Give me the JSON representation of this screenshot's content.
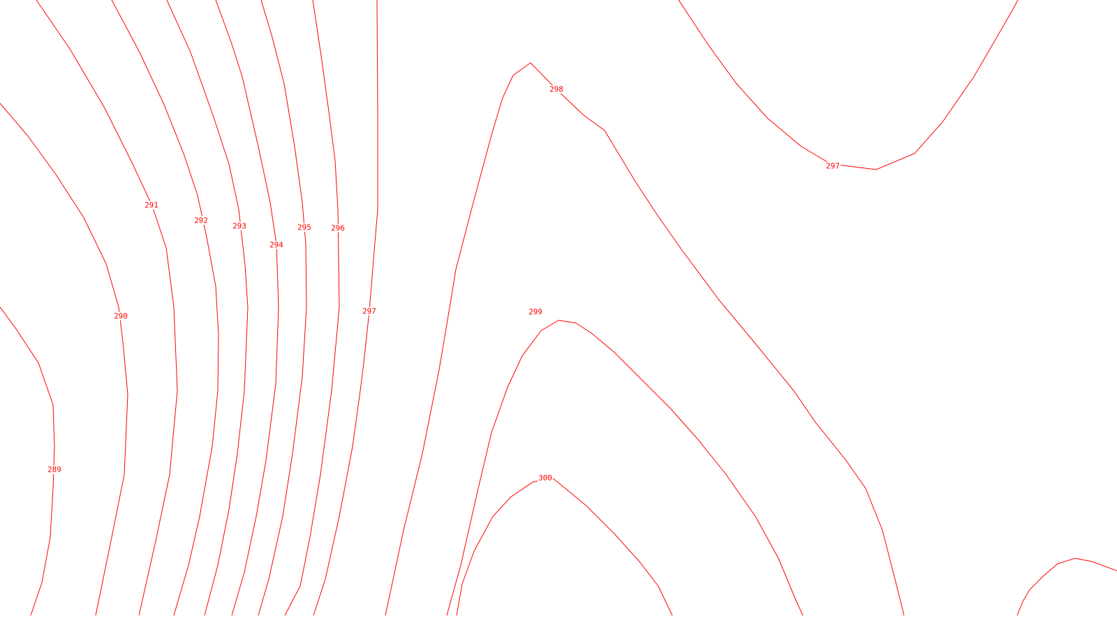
{
  "map": {
    "line_color": "#ff0000",
    "background": "#ffffff",
    "contour_interval": 1,
    "contours": [
      {
        "id": "289",
        "label": "289"
      },
      {
        "id": "290",
        "label": "290"
      },
      {
        "id": "291",
        "label": "291"
      },
      {
        "id": "292",
        "label": "292"
      },
      {
        "id": "293",
        "label": "293"
      },
      {
        "id": "294",
        "label": "294"
      },
      {
        "id": "295",
        "label": "295"
      },
      {
        "id": "296",
        "label": "296"
      },
      {
        "id": "297-west",
        "label": "297"
      },
      {
        "id": "297-northeast",
        "label": "297"
      },
      {
        "id": "298",
        "label": "298"
      },
      {
        "id": "299",
        "label": "299"
      },
      {
        "id": "300",
        "label": "300"
      },
      {
        "id": "unlabeled-southeast",
        "label": ""
      }
    ]
  }
}
